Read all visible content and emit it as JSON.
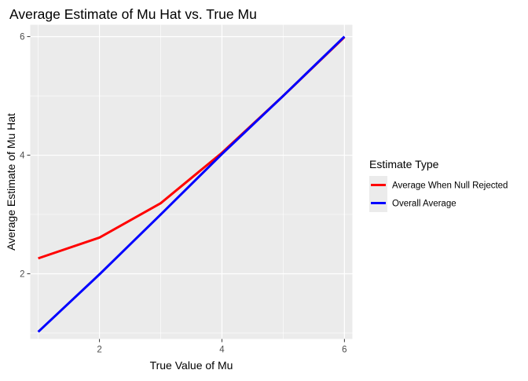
{
  "chart_data": {
    "type": "line",
    "title": "Average Estimate of Mu Hat vs. True Mu",
    "xlabel": "True Value of Mu",
    "ylabel": "Average Estimate of Mu Hat",
    "xlim": [
      0.87,
      6.13
    ],
    "ylim": [
      0.9,
      6.2
    ],
    "x_ticks": [
      2,
      4,
      6
    ],
    "y_ticks": [
      2,
      4,
      6
    ],
    "x_tick_labels": [
      "2",
      "4",
      "6"
    ],
    "y_tick_labels": [
      "2",
      "4",
      "6"
    ],
    "grid": true,
    "legend_title": "Estimate Type",
    "legend_position": "right",
    "x": [
      1,
      2,
      3,
      4,
      5,
      6
    ],
    "series": [
      {
        "name": "Average When Null Rejected",
        "color": "#ff0000",
        "values": [
          2.26,
          2.61,
          3.19,
          4.04,
          5.0,
          5.99
        ]
      },
      {
        "name": "Overall Average",
        "color": "#0000ff",
        "values": [
          1.02,
          1.99,
          3.0,
          4.02,
          5.0,
          6.0
        ]
      }
    ]
  }
}
